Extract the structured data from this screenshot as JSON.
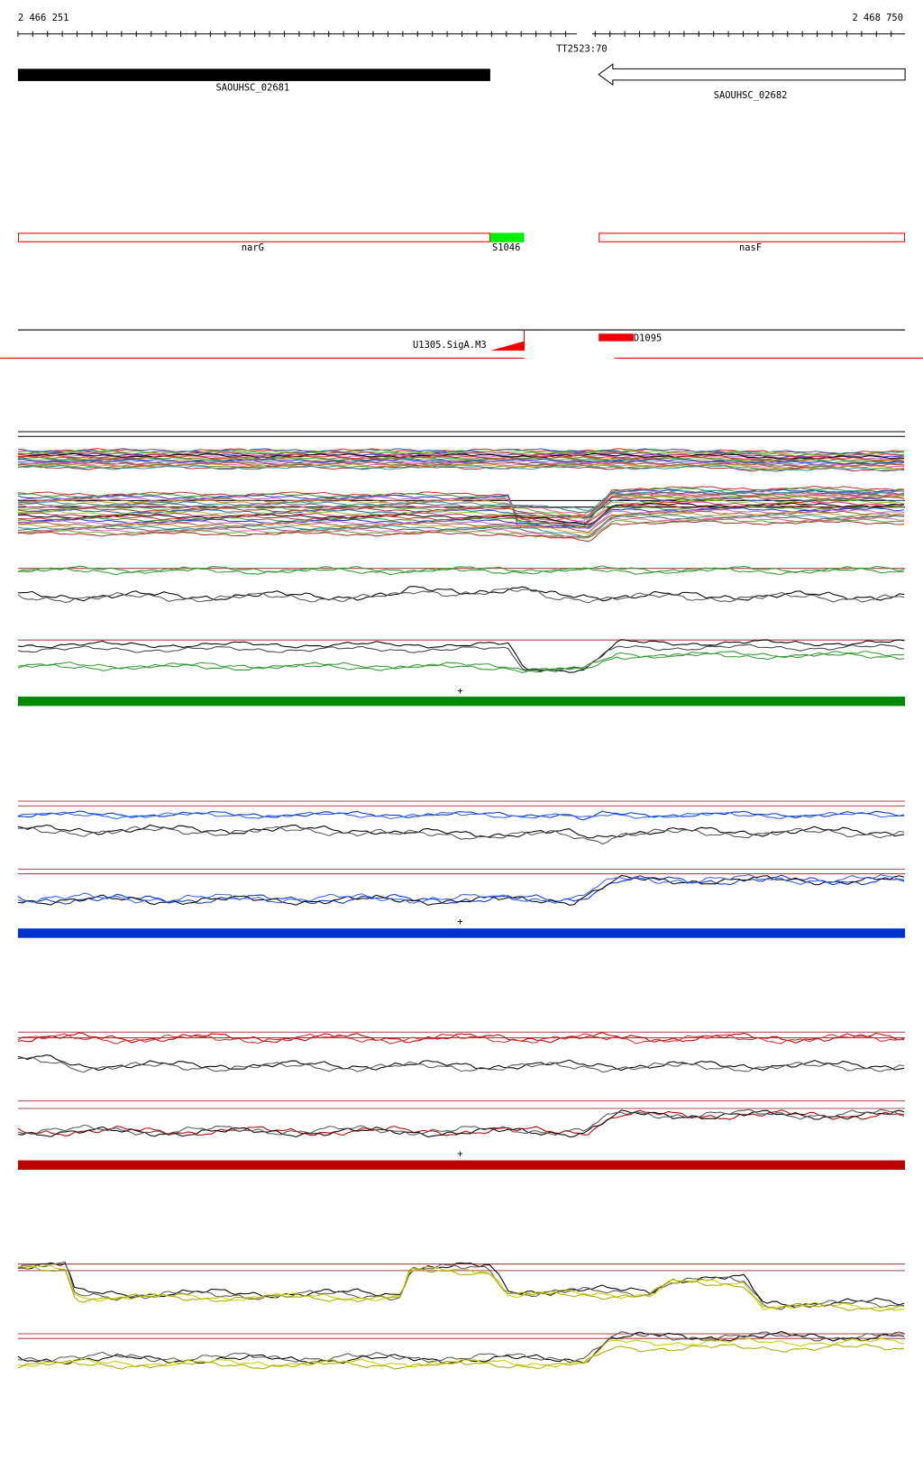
{
  "ruler": {
    "start": "2 466 251",
    "end": "2 468 750"
  },
  "terminator": "TT2523:70",
  "genes": [
    {
      "label": "SAOUHSC_02681"
    },
    {
      "label": "SAOUHSC_02682"
    }
  ],
  "features": [
    {
      "label": "narG"
    },
    {
      "label": "S1046"
    },
    {
      "label": "nasF"
    }
  ],
  "promoters": [
    {
      "label": "U1305.SigA.M3"
    },
    {
      "label": "D1095"
    }
  ],
  "strand_markers": [
    "+",
    "+",
    "+"
  ]
}
